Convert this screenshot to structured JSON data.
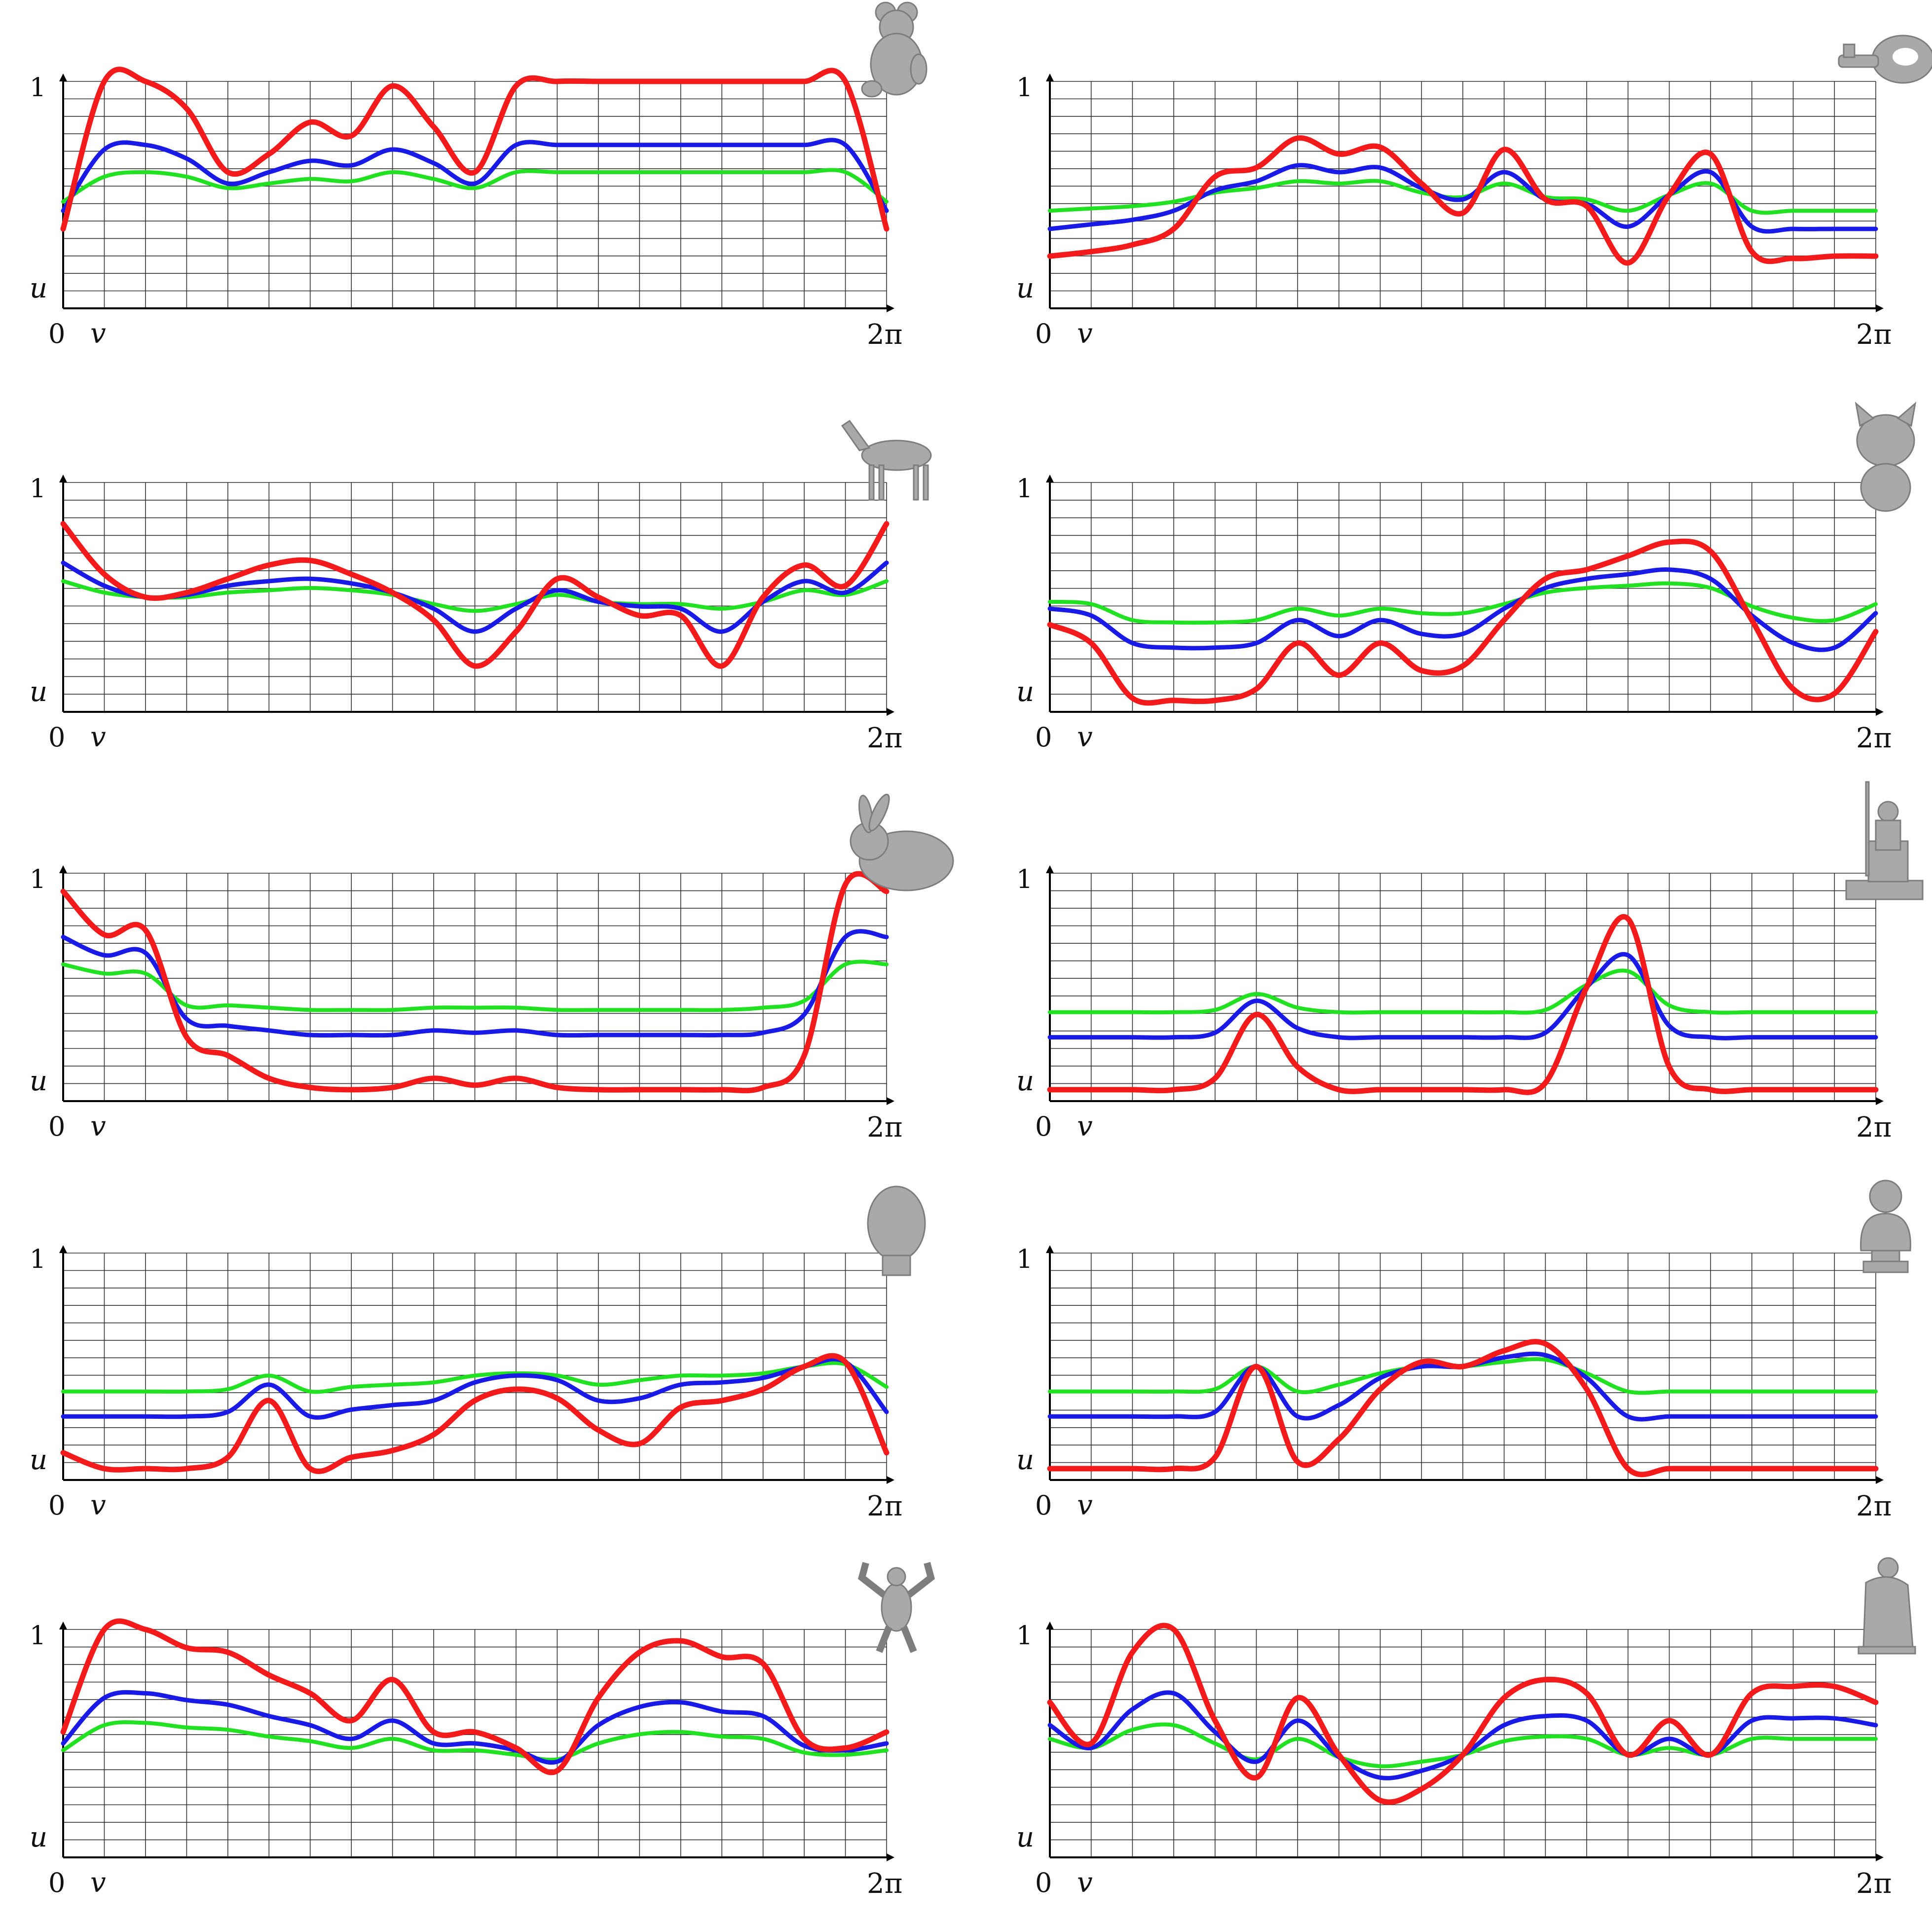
{
  "series_colors": {
    "red": "#f21a1a",
    "blue": "#1a1ae6",
    "green": "#22e022"
  },
  "axis_labels": {
    "y_top": "1",
    "y_var": "u",
    "x_start": "0",
    "x_var": "v",
    "x_end": "2π"
  },
  "chart_data": [
    {
      "type": "line",
      "model_icon": "teddy-bear-icon",
      "xlim": [
        0,
        6.2832
      ],
      "ylim": [
        0,
        1
      ],
      "x_end_label": "2π",
      "y_top_label": "1",
      "ylabel": "u",
      "xlabel": "v",
      "series": [
        {
          "name": "red",
          "values": [
            0.35,
            1.0,
            1.0,
            0.88,
            0.6,
            0.68,
            0.82,
            0.76,
            0.98,
            0.8,
            0.6,
            0.98,
            1.0,
            1.0,
            1.0,
            1.0,
            1.0,
            1.0,
            1.0,
            1.0,
            0.35
          ]
        },
        {
          "name": "blue",
          "values": [
            0.43,
            0.7,
            0.72,
            0.66,
            0.55,
            0.6,
            0.65,
            0.63,
            0.7,
            0.64,
            0.55,
            0.72,
            0.72,
            0.72,
            0.72,
            0.72,
            0.72,
            0.72,
            0.72,
            0.72,
            0.43
          ]
        },
        {
          "name": "green",
          "values": [
            0.47,
            0.58,
            0.6,
            0.58,
            0.53,
            0.55,
            0.57,
            0.56,
            0.6,
            0.57,
            0.53,
            0.6,
            0.6,
            0.6,
            0.6,
            0.6,
            0.6,
            0.6,
            0.6,
            0.6,
            0.47
          ]
        }
      ]
    },
    {
      "type": "line",
      "model_icon": "ring-object-icon",
      "xlim": [
        0,
        6.2832
      ],
      "ylim": [
        0,
        1
      ],
      "x_end_label": "2π",
      "y_top_label": "1",
      "ylabel": "u",
      "xlabel": "v",
      "series": [
        {
          "name": "red",
          "values": [
            0.23,
            0.25,
            0.28,
            0.35,
            0.58,
            0.62,
            0.75,
            0.68,
            0.71,
            0.55,
            0.42,
            0.7,
            0.48,
            0.45,
            0.2,
            0.5,
            0.68,
            0.25,
            0.22,
            0.23,
            0.23
          ]
        },
        {
          "name": "blue",
          "values": [
            0.35,
            0.37,
            0.39,
            0.43,
            0.52,
            0.56,
            0.63,
            0.6,
            0.62,
            0.53,
            0.48,
            0.6,
            0.48,
            0.46,
            0.36,
            0.5,
            0.6,
            0.36,
            0.35,
            0.35,
            0.35
          ]
        },
        {
          "name": "green",
          "values": [
            0.43,
            0.44,
            0.45,
            0.47,
            0.51,
            0.53,
            0.56,
            0.55,
            0.56,
            0.51,
            0.49,
            0.55,
            0.49,
            0.48,
            0.43,
            0.5,
            0.55,
            0.43,
            0.43,
            0.43,
            0.43
          ]
        }
      ]
    },
    {
      "type": "line",
      "model_icon": "horse-icon",
      "xlim": [
        0,
        6.2832
      ],
      "ylim": [
        0,
        1
      ],
      "x_end_label": "2π",
      "y_top_label": "1",
      "ylabel": "u",
      "xlabel": "v",
      "series": [
        {
          "name": "red",
          "values": [
            0.82,
            0.6,
            0.5,
            0.52,
            0.58,
            0.64,
            0.66,
            0.6,
            0.52,
            0.4,
            0.2,
            0.35,
            0.58,
            0.5,
            0.42,
            0.42,
            0.2,
            0.5,
            0.64,
            0.55,
            0.82
          ]
        },
        {
          "name": "blue",
          "values": [
            0.65,
            0.55,
            0.5,
            0.51,
            0.55,
            0.57,
            0.58,
            0.56,
            0.52,
            0.45,
            0.35,
            0.45,
            0.53,
            0.48,
            0.46,
            0.45,
            0.35,
            0.48,
            0.57,
            0.52,
            0.65
          ]
        },
        {
          "name": "green",
          "values": [
            0.57,
            0.52,
            0.5,
            0.5,
            0.52,
            0.53,
            0.54,
            0.53,
            0.51,
            0.47,
            0.44,
            0.47,
            0.51,
            0.48,
            0.47,
            0.47,
            0.45,
            0.48,
            0.53,
            0.51,
            0.57
          ]
        }
      ]
    },
    {
      "type": "line",
      "model_icon": "kitten-icon",
      "xlim": [
        0,
        6.2832
      ],
      "ylim": [
        0,
        1
      ],
      "x_end_label": "2π",
      "y_top_label": "1",
      "ylabel": "u",
      "xlabel": "v",
      "series": [
        {
          "name": "red",
          "values": [
            0.38,
            0.3,
            0.06,
            0.05,
            0.05,
            0.1,
            0.3,
            0.16,
            0.3,
            0.18,
            0.2,
            0.4,
            0.58,
            0.62,
            0.68,
            0.74,
            0.7,
            0.4,
            0.1,
            0.08,
            0.35
          ]
        },
        {
          "name": "blue",
          "values": [
            0.45,
            0.42,
            0.3,
            0.28,
            0.28,
            0.3,
            0.4,
            0.33,
            0.4,
            0.34,
            0.34,
            0.45,
            0.54,
            0.58,
            0.6,
            0.62,
            0.58,
            0.42,
            0.3,
            0.28,
            0.43
          ]
        },
        {
          "name": "green",
          "values": [
            0.48,
            0.47,
            0.4,
            0.39,
            0.39,
            0.4,
            0.45,
            0.42,
            0.45,
            0.43,
            0.43,
            0.47,
            0.52,
            0.54,
            0.55,
            0.56,
            0.54,
            0.46,
            0.41,
            0.4,
            0.47
          ]
        }
      ]
    },
    {
      "type": "line",
      "model_icon": "bunny-icon",
      "xlim": [
        0,
        6.2832
      ],
      "ylim": [
        0,
        1
      ],
      "x_end_label": "2π",
      "y_top_label": "1",
      "ylabel": "u",
      "xlabel": "v",
      "series": [
        {
          "name": "red",
          "values": [
            0.92,
            0.73,
            0.75,
            0.28,
            0.2,
            0.1,
            0.06,
            0.05,
            0.06,
            0.1,
            0.07,
            0.1,
            0.06,
            0.05,
            0.05,
            0.05,
            0.05,
            0.06,
            0.2,
            0.95,
            0.92
          ]
        },
        {
          "name": "blue",
          "values": [
            0.72,
            0.64,
            0.65,
            0.36,
            0.33,
            0.31,
            0.29,
            0.29,
            0.29,
            0.31,
            0.3,
            0.31,
            0.29,
            0.29,
            0.29,
            0.29,
            0.29,
            0.3,
            0.38,
            0.72,
            0.72
          ]
        },
        {
          "name": "green",
          "values": [
            0.6,
            0.56,
            0.56,
            0.42,
            0.42,
            0.41,
            0.4,
            0.4,
            0.4,
            0.41,
            0.41,
            0.41,
            0.4,
            0.4,
            0.4,
            0.4,
            0.4,
            0.41,
            0.44,
            0.6,
            0.6
          ]
        }
      ]
    },
    {
      "type": "line",
      "model_icon": "seated-statue-icon",
      "xlim": [
        0,
        6.2832
      ],
      "ylim": [
        0,
        1
      ],
      "x_end_label": "2π",
      "y_top_label": "1",
      "ylabel": "u",
      "xlabel": "v",
      "series": [
        {
          "name": "red",
          "values": [
            0.05,
            0.05,
            0.05,
            0.05,
            0.1,
            0.38,
            0.15,
            0.05,
            0.05,
            0.05,
            0.05,
            0.05,
            0.08,
            0.5,
            0.8,
            0.15,
            0.05,
            0.05,
            0.05,
            0.05,
            0.05
          ]
        },
        {
          "name": "blue",
          "values": [
            0.28,
            0.28,
            0.28,
            0.28,
            0.3,
            0.44,
            0.32,
            0.28,
            0.28,
            0.28,
            0.28,
            0.28,
            0.3,
            0.5,
            0.64,
            0.33,
            0.28,
            0.28,
            0.28,
            0.28,
            0.28
          ]
        },
        {
          "name": "green",
          "values": [
            0.39,
            0.39,
            0.39,
            0.39,
            0.4,
            0.47,
            0.41,
            0.39,
            0.39,
            0.39,
            0.39,
            0.39,
            0.4,
            0.51,
            0.57,
            0.42,
            0.39,
            0.39,
            0.39,
            0.39,
            0.39
          ]
        }
      ]
    },
    {
      "type": "line",
      "model_icon": "head-bust-icon",
      "xlim": [
        0,
        6.2832
      ],
      "ylim": [
        0,
        1
      ],
      "x_end_label": "2π",
      "y_top_label": "1",
      "ylabel": "u",
      "xlabel": "v",
      "series": [
        {
          "name": "red",
          "values": [
            0.12,
            0.05,
            0.05,
            0.05,
            0.1,
            0.35,
            0.05,
            0.1,
            0.13,
            0.2,
            0.35,
            0.4,
            0.36,
            0.22,
            0.16,
            0.32,
            0.35,
            0.4,
            0.5,
            0.52,
            0.12
          ]
        },
        {
          "name": "blue",
          "values": [
            0.28,
            0.28,
            0.28,
            0.28,
            0.3,
            0.42,
            0.28,
            0.31,
            0.33,
            0.35,
            0.43,
            0.46,
            0.44,
            0.35,
            0.36,
            0.42,
            0.43,
            0.45,
            0.5,
            0.52,
            0.3
          ]
        },
        {
          "name": "green",
          "values": [
            0.39,
            0.39,
            0.39,
            0.39,
            0.4,
            0.46,
            0.39,
            0.41,
            0.42,
            0.43,
            0.46,
            0.47,
            0.46,
            0.42,
            0.44,
            0.46,
            0.46,
            0.47,
            0.5,
            0.51,
            0.41
          ]
        }
      ]
    },
    {
      "type": "line",
      "model_icon": "bust-statue-icon",
      "xlim": [
        0,
        6.2832
      ],
      "ylim": [
        0,
        1
      ],
      "x_end_label": "2π",
      "y_top_label": "1",
      "ylabel": "u",
      "xlabel": "v",
      "series": [
        {
          "name": "red",
          "values": [
            0.05,
            0.05,
            0.05,
            0.05,
            0.1,
            0.5,
            0.08,
            0.18,
            0.4,
            0.52,
            0.5,
            0.57,
            0.6,
            0.4,
            0.05,
            0.05,
            0.05,
            0.05,
            0.05,
            0.05,
            0.05
          ]
        },
        {
          "name": "blue",
          "values": [
            0.28,
            0.28,
            0.28,
            0.28,
            0.3,
            0.5,
            0.28,
            0.33,
            0.45,
            0.5,
            0.5,
            0.54,
            0.55,
            0.45,
            0.28,
            0.28,
            0.28,
            0.28,
            0.28,
            0.28,
            0.28
          ]
        },
        {
          "name": "green",
          "values": [
            0.39,
            0.39,
            0.39,
            0.39,
            0.4,
            0.5,
            0.39,
            0.42,
            0.47,
            0.5,
            0.5,
            0.52,
            0.53,
            0.47,
            0.39,
            0.39,
            0.39,
            0.39,
            0.39,
            0.39,
            0.39
          ]
        }
      ]
    },
    {
      "type": "line",
      "model_icon": "armadillo-icon",
      "xlim": [
        0,
        6.2832
      ],
      "ylim": [
        0,
        1
      ],
      "x_end_label": "2π",
      "y_top_label": "1",
      "ylabel": "u",
      "xlabel": "v",
      "series": [
        {
          "name": "red",
          "values": [
            0.55,
            1.0,
            1.0,
            0.92,
            0.9,
            0.8,
            0.72,
            0.6,
            0.78,
            0.55,
            0.55,
            0.48,
            0.38,
            0.7,
            0.9,
            0.95,
            0.88,
            0.85,
            0.52,
            0.48,
            0.55
          ]
        },
        {
          "name": "blue",
          "values": [
            0.5,
            0.7,
            0.72,
            0.69,
            0.67,
            0.62,
            0.58,
            0.52,
            0.6,
            0.5,
            0.5,
            0.47,
            0.42,
            0.58,
            0.66,
            0.68,
            0.64,
            0.62,
            0.49,
            0.47,
            0.5
          ]
        },
        {
          "name": "green",
          "values": [
            0.47,
            0.58,
            0.59,
            0.57,
            0.56,
            0.53,
            0.51,
            0.48,
            0.52,
            0.47,
            0.47,
            0.45,
            0.43,
            0.5,
            0.54,
            0.55,
            0.53,
            0.52,
            0.46,
            0.45,
            0.47
          ]
        }
      ]
    },
    {
      "type": "line",
      "model_icon": "pieta-statue-icon",
      "xlim": [
        0,
        6.2832
      ],
      "ylim": [
        0,
        1
      ],
      "x_end_label": "2π",
      "y_top_label": "1",
      "ylabel": "u",
      "xlabel": "v",
      "series": [
        {
          "name": "red",
          "values": [
            0.68,
            0.5,
            0.9,
            1.0,
            0.6,
            0.35,
            0.7,
            0.45,
            0.25,
            0.3,
            0.45,
            0.7,
            0.78,
            0.72,
            0.45,
            0.6,
            0.45,
            0.72,
            0.75,
            0.75,
            0.68
          ]
        },
        {
          "name": "blue",
          "values": [
            0.58,
            0.48,
            0.65,
            0.72,
            0.55,
            0.42,
            0.6,
            0.44,
            0.35,
            0.38,
            0.45,
            0.58,
            0.62,
            0.6,
            0.45,
            0.52,
            0.45,
            0.6,
            0.61,
            0.61,
            0.58
          ]
        },
        {
          "name": "green",
          "values": [
            0.52,
            0.48,
            0.56,
            0.58,
            0.5,
            0.43,
            0.52,
            0.44,
            0.4,
            0.42,
            0.45,
            0.51,
            0.53,
            0.52,
            0.45,
            0.48,
            0.45,
            0.52,
            0.52,
            0.52,
            0.52
          ]
        }
      ]
    }
  ]
}
